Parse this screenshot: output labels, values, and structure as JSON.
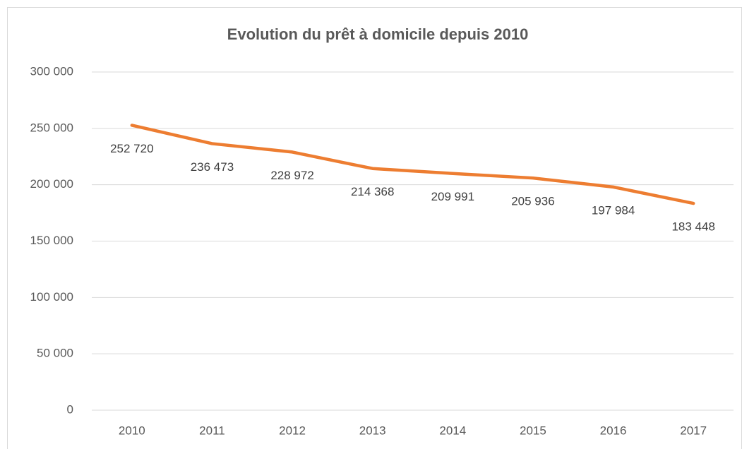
{
  "chart_data": {
    "type": "line",
    "title": "Evolution du prêt à domicile depuis 2010",
    "categories": [
      "2010",
      "2011",
      "2012",
      "2013",
      "2014",
      "2015",
      "2016",
      "2017"
    ],
    "values": [
      252720,
      236473,
      228972,
      214368,
      209991,
      205936,
      197984,
      183448
    ],
    "value_labels": [
      "252 720",
      "236 473",
      "228 972",
      "214 368",
      "209 991",
      "205 936",
      "197 984",
      "183 448"
    ],
    "color": "#ed7d31",
    "ylim": [
      0,
      300000
    ],
    "yticks": [
      0,
      {
        "value": 50000,
        "label": "50 000"
      },
      {
        "value": 100000,
        "label": "100 000"
      },
      {
        "value": 150000,
        "label": "150 000"
      },
      {
        "value": 200000,
        "label": "200 000"
      },
      {
        "value": 250000,
        "label": "250 000"
      },
      {
        "value": 300000,
        "label": "300 000"
      }
    ],
    "grid": true
  }
}
